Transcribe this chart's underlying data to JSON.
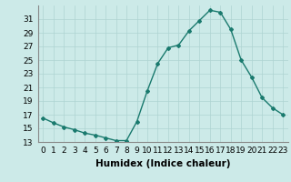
{
  "x": [
    0,
    1,
    2,
    3,
    4,
    5,
    6,
    7,
    8,
    9,
    10,
    11,
    12,
    13,
    14,
    15,
    16,
    17,
    18,
    19,
    20,
    21,
    22,
    23
  ],
  "y": [
    16.5,
    15.8,
    15.2,
    14.8,
    14.3,
    14.0,
    13.6,
    13.2,
    13.2,
    16.0,
    20.5,
    24.5,
    26.8,
    27.2,
    29.3,
    30.8,
    32.3,
    32.0,
    29.5,
    25.0,
    22.5,
    19.5,
    18.0,
    17.0
  ],
  "line_color": "#1a7a6e",
  "marker": "D",
  "marker_size": 2,
  "bg_color": "#cceae8",
  "grid_color": "#aed4d2",
  "xlabel": "Humidex (Indice chaleur)",
  "xlim": [
    -0.5,
    23.5
  ],
  "ylim": [
    13,
    33
  ],
  "yticks": [
    13,
    15,
    17,
    19,
    21,
    23,
    25,
    27,
    29,
    31
  ],
  "xtick_labels": [
    "0",
    "1",
    "2",
    "3",
    "4",
    "5",
    "6",
    "7",
    "8",
    "9",
    "10",
    "11",
    "12",
    "13",
    "14",
    "15",
    "16",
    "17",
    "18",
    "19",
    "20",
    "21",
    "22",
    "23"
  ],
  "xlabel_fontsize": 7.5,
  "tick_fontsize": 6.5,
  "line_width": 1.0
}
